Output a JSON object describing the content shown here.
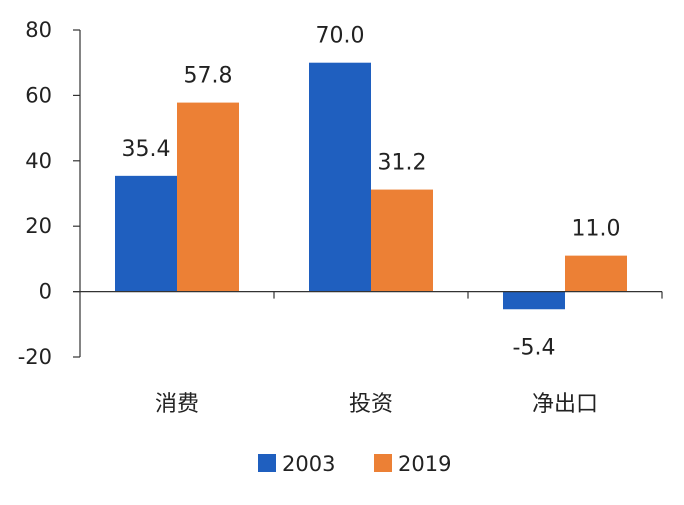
{
  "chart_data": {
    "type": "bar",
    "categories": [
      "消费",
      "投资",
      "净出口"
    ],
    "series": [
      {
        "name": "2003",
        "values": [
          35.4,
          70.0,
          -5.4
        ],
        "labels": [
          "35.4",
          "70.0",
          "-5.4"
        ],
        "color": "#1f5fbf"
      },
      {
        "name": "2019",
        "values": [
          57.8,
          31.2,
          11.0
        ],
        "labels": [
          "57.8",
          "31.2",
          "11.0"
        ],
        "color": "#ec8035"
      }
    ],
    "ylim": [
      -20,
      80
    ],
    "yticks": [
      -20,
      0,
      20,
      40,
      60,
      80
    ],
    "ytick_labels": [
      "-20",
      "0",
      "20",
      "40",
      "60",
      "80"
    ],
    "grid": false,
    "legend_position": "bottom-center"
  }
}
